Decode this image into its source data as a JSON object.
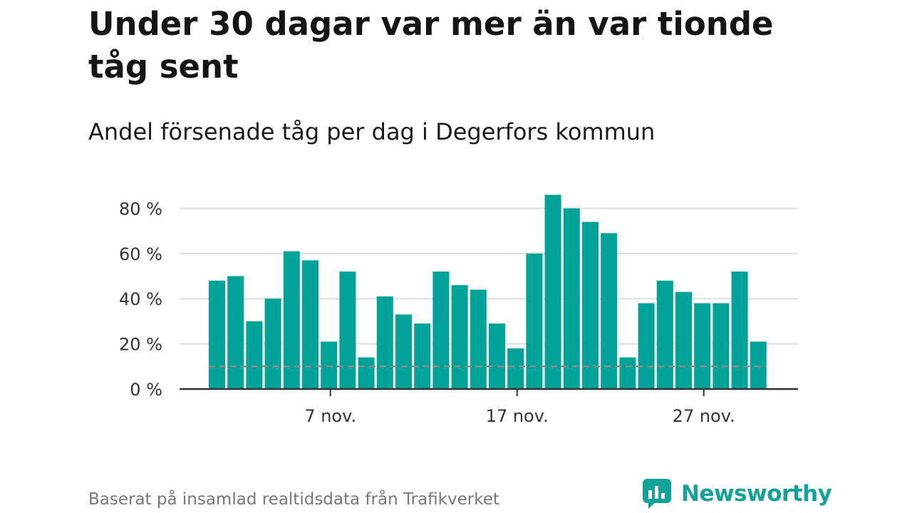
{
  "title": "Under 30 dagar var mer än var tionde tåg sent",
  "subtitle": "Andel försenade tåg per dag i Degerfors kommun",
  "footer": "Baserat på insamlad realtidsdata från Trafikverket",
  "brand": {
    "name": "Newsworthy",
    "icon": "newsworthy-logo-icon",
    "color": "#14a39b"
  },
  "chart_data": {
    "type": "bar",
    "categories": [
      "1 nov.",
      "2 nov.",
      "3 nov.",
      "4 nov.",
      "5 nov.",
      "6 nov.",
      "7 nov.",
      "8 nov.",
      "9 nov.",
      "10 nov.",
      "11 nov.",
      "12 nov.",
      "13 nov.",
      "14 nov.",
      "15 nov.",
      "16 nov.",
      "17 nov.",
      "18 nov.",
      "19 nov.",
      "20 nov.",
      "21 nov.",
      "22 nov.",
      "23 nov.",
      "24 nov.",
      "25 nov.",
      "26 nov.",
      "27 nov.",
      "28 nov.",
      "29 nov.",
      "30 nov."
    ],
    "values": [
      48,
      50,
      30,
      40,
      61,
      57,
      21,
      52,
      14,
      41,
      33,
      29,
      52,
      46,
      44,
      29,
      18,
      60,
      86,
      80,
      74,
      69,
      14,
      38,
      48,
      43,
      38,
      38,
      52,
      21
    ],
    "y_ticks": [
      "0 %",
      "20 %",
      "40 %",
      "60 %",
      "80 %"
    ],
    "x_ticks": [
      "7 nov.",
      "17 nov.",
      "27 nov."
    ],
    "ylim": [
      0,
      90
    ],
    "reference_line": 10,
    "bar_color": "#00a398",
    "reference_color": "#8a8a8a",
    "grid": true
  }
}
